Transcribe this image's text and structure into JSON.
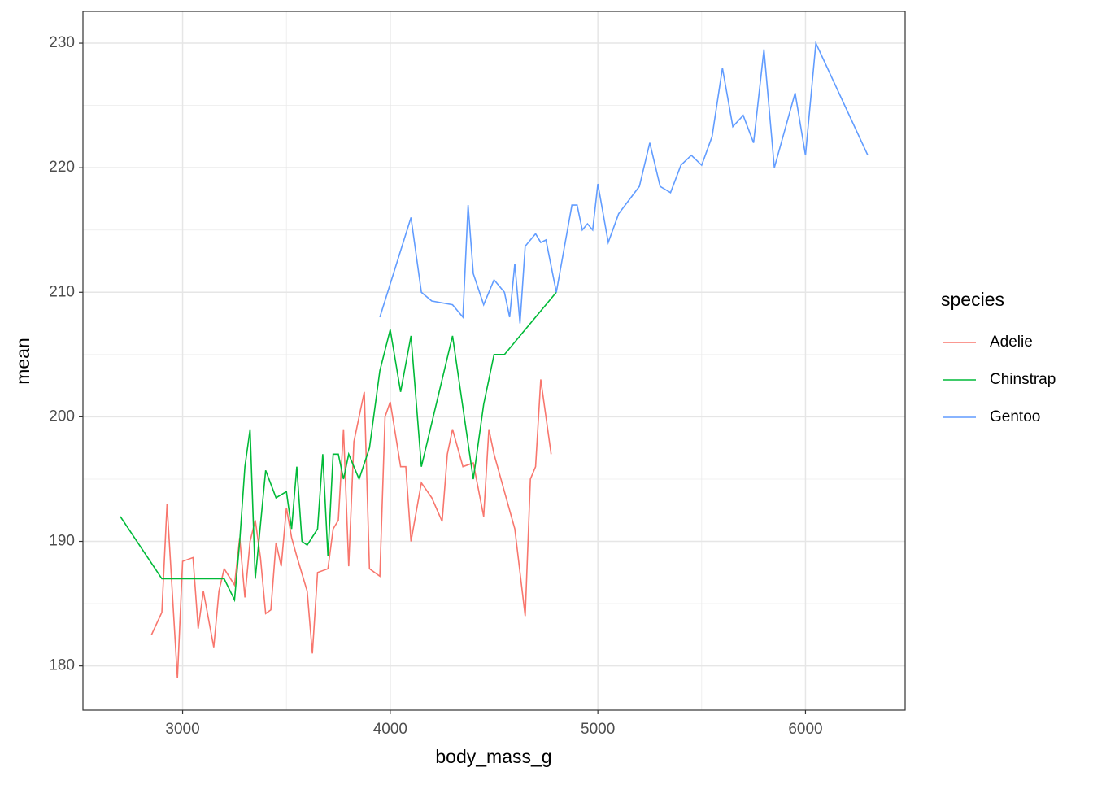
{
  "chart_data": {
    "type": "line",
    "x_label": "body_mass_g",
    "y_label": "mean",
    "legend_title": "species",
    "xlim": [
      2520,
      6480
    ],
    "ylim": [
      176.45,
      232.55
    ],
    "xticks": [
      3000,
      4000,
      5000,
      6000
    ],
    "yticks": [
      180,
      190,
      200,
      210,
      220,
      230
    ],
    "x_minor_ticks": [
      3500,
      4500,
      5500
    ],
    "y_minor_ticks": [
      185,
      195,
      205,
      215,
      225
    ],
    "grid": true,
    "legend_position": "right",
    "series": [
      {
        "name": "Adelie",
        "color": "#F8766D",
        "x": [
          2850,
          2900,
          2925,
          2975,
          3000,
          3050,
          3075,
          3100,
          3150,
          3175,
          3200,
          3250,
          3275,
          3300,
          3325,
          3350,
          3375,
          3400,
          3425,
          3450,
          3475,
          3500,
          3525,
          3550,
          3600,
          3625,
          3650,
          3700,
          3725,
          3750,
          3775,
          3800,
          3825,
          3875,
          3900,
          3950,
          3975,
          4000,
          4050,
          4075,
          4100,
          4150,
          4200,
          4250,
          4275,
          4300,
          4350,
          4400,
          4450,
          4475,
          4500,
          4550,
          4600,
          4650,
          4675,
          4700,
          4725,
          4775
        ],
        "values": [
          182.5,
          184.3,
          193,
          179,
          188.4,
          188.7,
          183,
          186,
          181.5,
          186,
          187.8,
          186.5,
          190.3,
          185.5,
          190,
          191.7,
          188.7,
          184.2,
          184.5,
          189.9,
          188,
          192.7,
          190.3,
          188.8,
          186,
          181,
          187.5,
          187.8,
          191,
          191.7,
          199,
          188,
          198,
          202,
          187.8,
          187.2,
          200,
          201.2,
          196,
          196,
          190,
          194.7,
          193.5,
          191.6,
          197,
          199,
          196,
          196.3,
          192,
          199,
          197,
          194,
          191,
          184,
          195,
          196,
          203,
          197
        ]
      },
      {
        "name": "Chinstrap",
        "color": "#00BA38",
        "x": [
          2700,
          2900,
          3200,
          3250,
          3275,
          3300,
          3325,
          3350,
          3400,
          3450,
          3500,
          3525,
          3550,
          3575,
          3600,
          3650,
          3675,
          3700,
          3725,
          3750,
          3775,
          3800,
          3850,
          3900,
          3950,
          4000,
          4050,
          4100,
          4150,
          4300,
          4400,
          4450,
          4500,
          4550,
          4800
        ],
        "values": [
          192,
          187,
          187,
          185.3,
          190,
          196,
          199,
          187,
          195.7,
          193.5,
          194,
          191,
          196,
          190,
          189.7,
          191,
          197,
          188.8,
          197,
          197,
          195,
          197,
          195,
          197.5,
          203.7,
          207,
          202,
          206.5,
          196,
          206.5,
          195,
          201,
          205,
          205,
          210
        ]
      },
      {
        "name": "Gentoo",
        "color": "#619CFF",
        "x": [
          3950,
          4100,
          4150,
          4200,
          4300,
          4350,
          4375,
          4400,
          4450,
          4500,
          4550,
          4575,
          4600,
          4625,
          4650,
          4700,
          4725,
          4750,
          4800,
          4875,
          4900,
          4925,
          4950,
          4975,
          5000,
          5050,
          5100,
          5200,
          5250,
          5300,
          5350,
          5400,
          5450,
          5500,
          5550,
          5600,
          5650,
          5700,
          5750,
          5800,
          5850,
          5950,
          6000,
          6050,
          6300
        ],
        "values": [
          208,
          216,
          210,
          209.3,
          209,
          208,
          217,
          211.5,
          209,
          211,
          210,
          208,
          212.3,
          207.5,
          213.7,
          214.7,
          214,
          214.2,
          210,
          217,
          217,
          215,
          215.5,
          215,
          218.7,
          214,
          216.3,
          218.5,
          222,
          218.5,
          218,
          220.2,
          221,
          220.2,
          222.5,
          228,
          223.3,
          224.2,
          222,
          229.5,
          220,
          226,
          221,
          230,
          221
        ]
      }
    ]
  }
}
